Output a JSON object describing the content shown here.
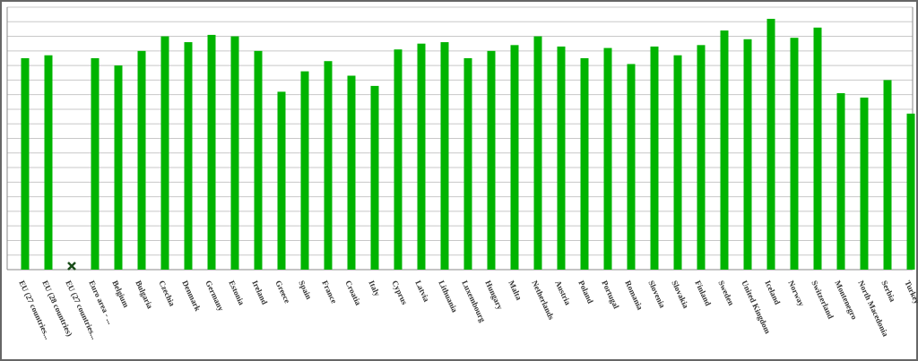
{
  "chart_data": {
    "type": "bar",
    "categories": [
      "EU (27 countries...",
      "EU (28 countries)",
      "EU (27 countries...",
      "Euro area - ...",
      "Belgium",
      "Bulgaria",
      "Czechia",
      "Denmark",
      "Germany",
      "Estonia",
      "Ireland",
      "Greece",
      "Spain",
      "France",
      "Croatia",
      "Italy",
      "Cyprus",
      "Latvia",
      "Lithuania",
      "Luxembourg",
      "Hungary",
      "Malta",
      "Netherlands",
      "Austria",
      "Poland",
      "Portugal",
      "Romania",
      "Slovenia",
      "Slovakia",
      "Finland",
      "Sweden",
      "United Kingdom",
      "Iceland",
      "Norway",
      "Switzerland",
      "Montenegro",
      "North Macedonia",
      "Serbia",
      "Turkey"
    ],
    "values": [
      14.5,
      14.7,
      null,
      14.5,
      14.0,
      15.0,
      16.0,
      15.6,
      16.1,
      16.0,
      15.0,
      12.2,
      13.6,
      14.3,
      13.3,
      12.6,
      15.1,
      15.5,
      15.6,
      14.5,
      15.0,
      15.4,
      16.0,
      15.3,
      14.5,
      15.2,
      14.1,
      15.3,
      14.7,
      15.4,
      16.4,
      15.8,
      17.2,
      15.9,
      16.6,
      12.1,
      11.8,
      13.0,
      10.7
    ],
    "color": "#00b400",
    "ylim": [
      0,
      18
    ],
    "yticks": [
      0,
      1,
      2,
      3,
      4,
      5,
      6,
      7,
      8,
      9,
      10,
      11,
      12,
      13,
      14,
      15,
      16,
      17,
      18
    ],
    "grid": true
  }
}
